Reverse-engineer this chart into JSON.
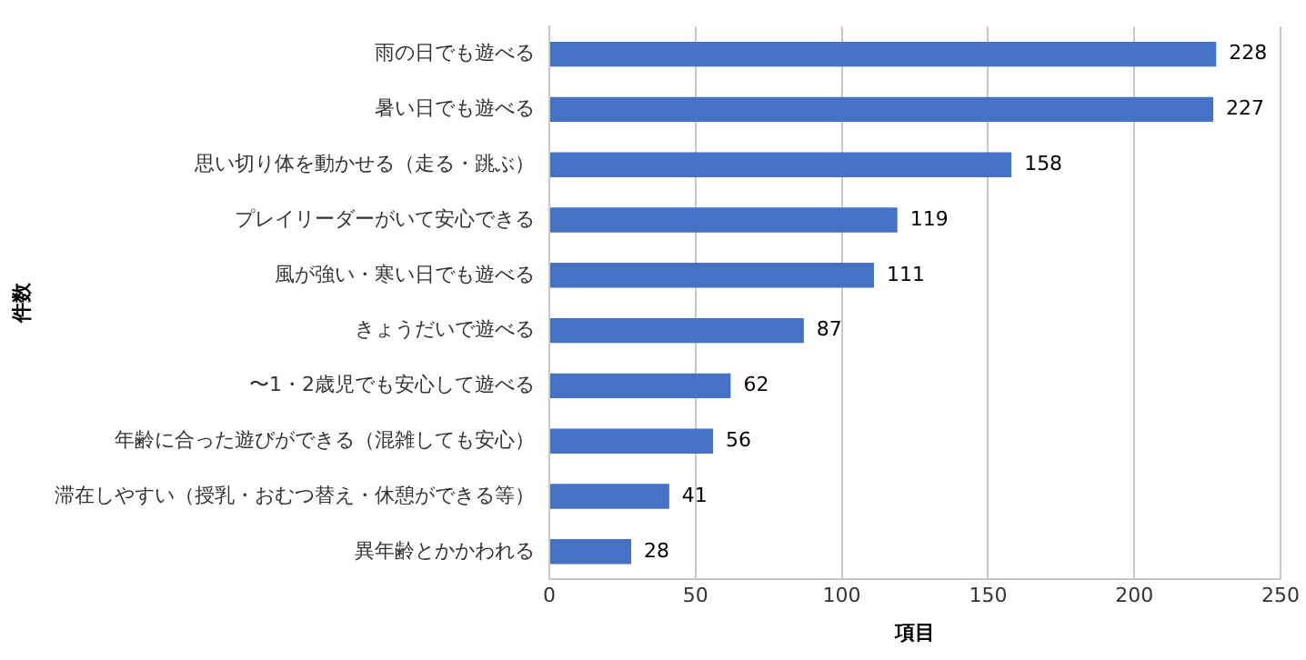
{
  "chart_data": {
    "type": "bar",
    "orientation": "horizontal",
    "xlabel": "項目",
    "ylabel": "件数",
    "categories": [
      "雨の日でも遊べる",
      "暑い日でも遊べる",
      "思い切り体を動かせる（走る・跳ぶ）",
      "プレイリーダーがいて安心できる",
      "風が強い・寒い日でも遊べる",
      "きょうだいで遊べる",
      "〜1・2歳児でも安心して遊べる",
      "年齢に合った遊びができる（混雑しても安心）",
      "滞在しやすい（授乳・おむつ替え・休憩ができる等）",
      "異年齢とかかわれる"
    ],
    "values": [
      228,
      227,
      158,
      119,
      111,
      87,
      62,
      56,
      41,
      28
    ],
    "color": "#4472c4",
    "xlim": [
      0,
      250
    ],
    "xticks": [
      0,
      50,
      100,
      150,
      200,
      250
    ],
    "grid": "x",
    "data_labels": true,
    "legend": false
  }
}
